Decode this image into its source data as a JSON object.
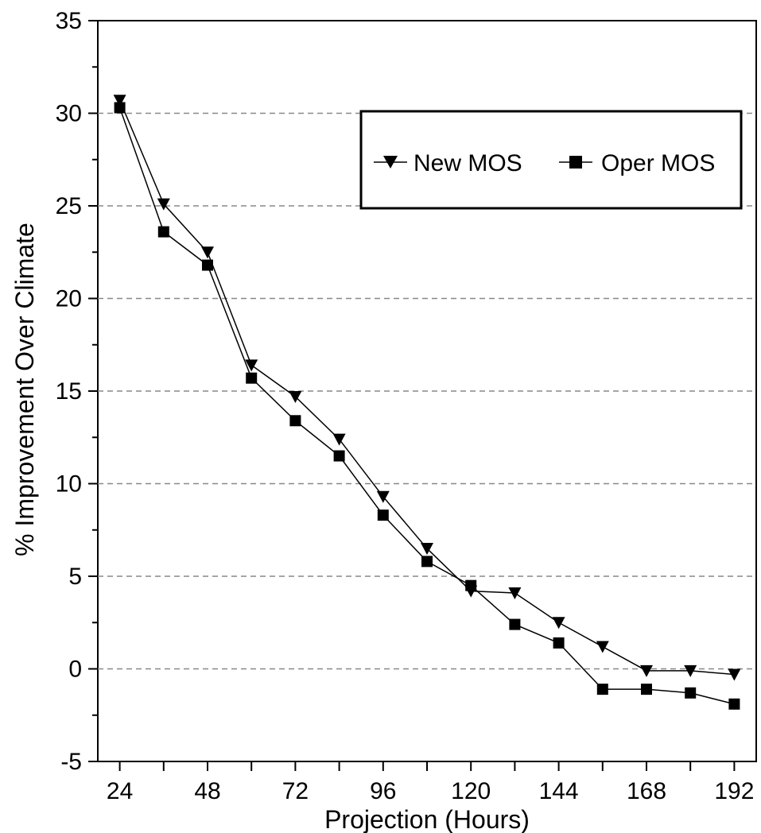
{
  "chart_data": {
    "type": "line",
    "title": "",
    "xlabel": "Projection (Hours)",
    "ylabel": "% Improvement Over Climate",
    "x": [
      24,
      36,
      48,
      60,
      72,
      84,
      96,
      108,
      120,
      132,
      144,
      156,
      168,
      180,
      192
    ],
    "x_ticks": [
      "24",
      "48",
      "72",
      "96",
      "120",
      "144",
      "168",
      "192"
    ],
    "y_ticks": [
      "-5",
      "0",
      "5",
      "10",
      "15",
      "20",
      "25",
      "30",
      "35"
    ],
    "xlim": [
      18,
      198
    ],
    "ylim": [
      -5,
      35
    ],
    "grid": "horizontal dashed",
    "legend_position": "top-right",
    "series": [
      {
        "name": "New MOS",
        "marker": "triangle-down",
        "color": "#000000",
        "values": [
          30.7,
          25.1,
          22.5,
          16.4,
          14.7,
          12.4,
          9.3,
          6.5,
          4.2,
          4.1,
          2.5,
          1.2,
          -0.1,
          -0.1,
          -0.3
        ]
      },
      {
        "name": "Oper MOS",
        "marker": "square",
        "color": "#000000",
        "values": [
          30.3,
          23.6,
          21.8,
          15.7,
          13.4,
          11.5,
          8.3,
          5.8,
          4.5,
          2.4,
          1.4,
          -1.1,
          -1.1,
          -1.3,
          -1.9
        ]
      }
    ]
  }
}
